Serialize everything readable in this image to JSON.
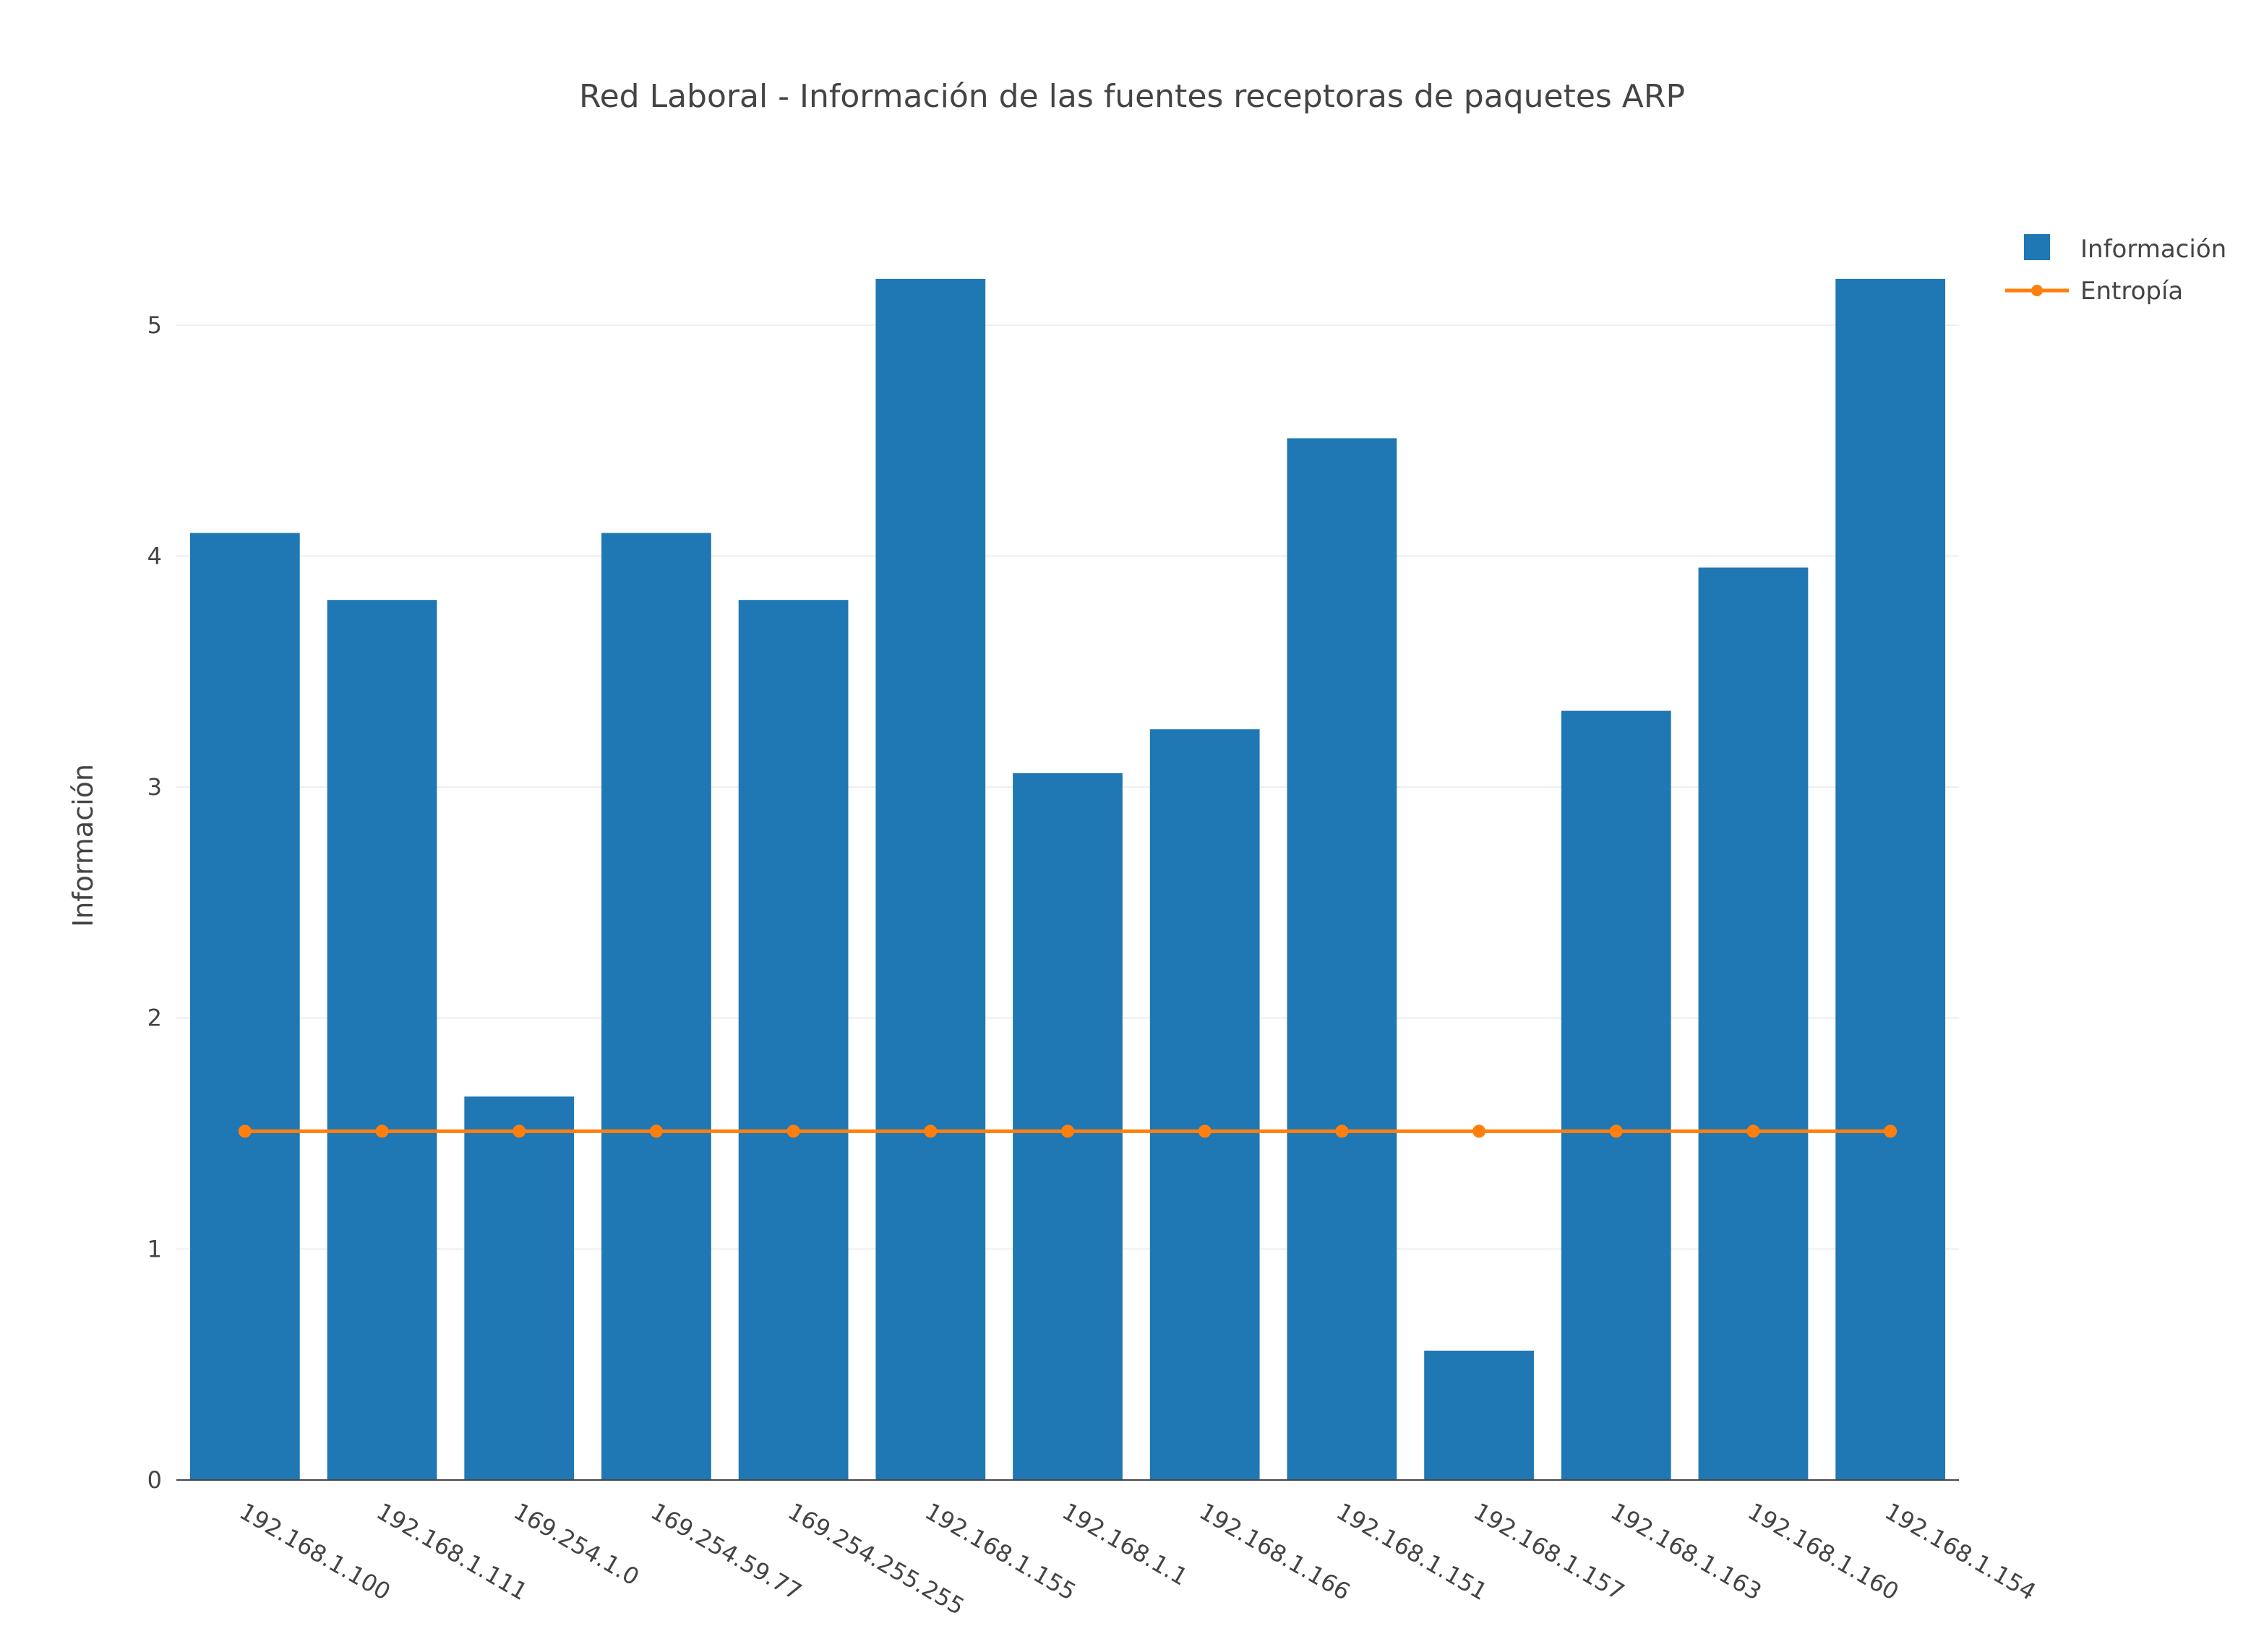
{
  "chart_data": {
    "type": "bar",
    "title": "Red Laboral - Información de las fuentes receptoras de paquetes ARP",
    "xlabel": "",
    "ylabel": "Información",
    "ylim": [
      0,
      5.5
    ],
    "yticks": [
      0,
      1,
      2,
      3,
      4,
      5
    ],
    "grid": true,
    "legend_position": "top-right",
    "categories": [
      "192.168.1.100",
      "192.168.1.111",
      "169.254.1.0",
      "169.254.59.77",
      "169.254.255.255",
      "192.168.1.155",
      "192.168.1.1",
      "192.168.1.166",
      "192.168.1.151",
      "192.168.1.157",
      "192.168.1.163",
      "192.168.1.160",
      "192.168.1.154"
    ],
    "series": [
      {
        "name": "Información",
        "type": "bar",
        "color": "#1f77b4",
        "values": [
          4.1,
          3.81,
          1.66,
          4.1,
          3.81,
          5.2,
          3.06,
          3.25,
          4.51,
          0.56,
          3.33,
          3.95,
          5.2
        ]
      },
      {
        "name": "Entropía",
        "type": "line",
        "color": "#ff7f0e",
        "values": [
          1.51,
          1.51,
          1.51,
          1.51,
          1.51,
          1.51,
          1.51,
          1.51,
          1.51,
          1.51,
          1.51,
          1.51,
          1.51
        ]
      }
    ]
  }
}
